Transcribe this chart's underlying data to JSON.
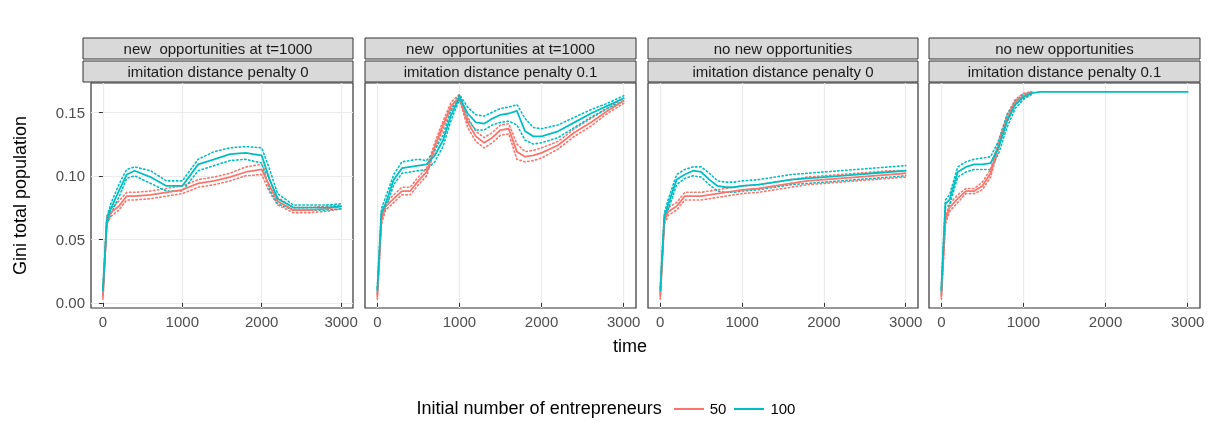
{
  "chart_data": [
    {
      "type": "line",
      "title": "new  opportunities at t=1000",
      "subtitle": "imitation distance penalty 0",
      "ylabel": "Gini total population",
      "legend_title": "Initial number of entrepreneurs",
      "legend": "bottom",
      "grid": true,
      "marker": "none",
      "line_style": "solid",
      "xlim": [
        -150,
        3150
      ],
      "ylim": [
        -0.004,
        0.173
      ],
      "xticks": [
        0,
        1000,
        2000,
        3000
      ],
      "yticks": [
        {
          "value": 0,
          "label": "0.00"
        },
        {
          "value": 0.05,
          "label": "0.05"
        },
        {
          "value": 0.1,
          "label": "0.10"
        },
        {
          "value": 0.15,
          "label": "0.15"
        }
      ],
      "x": [
        0,
        50,
        100,
        200,
        300,
        400,
        600,
        800,
        1000,
        1200,
        1400,
        1600,
        1800,
        2000,
        2100,
        2200,
        2400,
        2600,
        2800,
        3000
      ],
      "series": [
        {
          "color": "#f8766d",
          "line_style": "dotted",
          "values": [
            0.007,
            0.068,
            0.074,
            0.08,
            0.087,
            0.087,
            0.088,
            0.09,
            0.092,
            0.097,
            0.099,
            0.102,
            0.107,
            0.109,
            0.097,
            0.083,
            0.075,
            0.075,
            0.076,
            0.077
          ]
        },
        {
          "color": "#f8766d",
          "line_style": "dotted",
          "values": [
            0.003,
            0.062,
            0.068,
            0.073,
            0.081,
            0.081,
            0.082,
            0.084,
            0.086,
            0.091,
            0.093,
            0.096,
            0.1,
            0.101,
            0.087,
            0.077,
            0.071,
            0.071,
            0.072,
            0.074
          ]
        },
        {
          "color": "#00bfc4",
          "line_style": "dotted",
          "values": [
            0.012,
            0.068,
            0.078,
            0.093,
            0.105,
            0.107,
            0.104,
            0.096,
            0.096,
            0.113,
            0.119,
            0.122,
            0.123,
            0.122,
            0.105,
            0.086,
            0.077,
            0.077,
            0.077,
            0.078
          ]
        },
        {
          "color": "#00bfc4",
          "line_style": "dotted",
          "values": [
            0.008,
            0.062,
            0.07,
            0.083,
            0.098,
            0.1,
            0.094,
            0.088,
            0.088,
            0.104,
            0.108,
            0.112,
            0.113,
            0.11,
            0.089,
            0.078,
            0.073,
            0.073,
            0.073,
            0.074
          ]
        },
        {
          "name": "50",
          "color": "#f8766d",
          "values": [
            0.005,
            0.065,
            0.071,
            0.076,
            0.084,
            0.084,
            0.085,
            0.087,
            0.089,
            0.094,
            0.096,
            0.099,
            0.103,
            0.105,
            0.092,
            0.08,
            0.073,
            0.073,
            0.074,
            0.076
          ]
        },
        {
          "name": "100",
          "color": "#00bfc4",
          "values": [
            0.01,
            0.065,
            0.074,
            0.088,
            0.101,
            0.104,
            0.099,
            0.092,
            0.092,
            0.109,
            0.113,
            0.117,
            0.118,
            0.116,
            0.097,
            0.082,
            0.075,
            0.075,
            0.075,
            0.076
          ]
        }
      ]
    },
    {
      "type": "line",
      "title": "new  opportunities at t=1000",
      "subtitle": "imitation distance penalty 0.1",
      "xlabel": "time",
      "grid": true,
      "marker": "none",
      "line_style": "solid",
      "tick_labels": "x",
      "xlim": [
        -150,
        3150
      ],
      "ylim": [
        -0.004,
        0.173
      ],
      "xticks": [
        0,
        1000,
        2000,
        3000
      ],
      "x": [
        0,
        50,
        100,
        200,
        300,
        400,
        500,
        600,
        700,
        800,
        900,
        1000,
        1100,
        1200,
        1300,
        1400,
        1500,
        1600,
        1700,
        1800,
        1900,
        2000,
        2200,
        2400,
        2600,
        2800,
        3000
      ],
      "series": [
        {
          "color": "#f8766d",
          "line_style": "dotted",
          "values": [
            0.007,
            0.068,
            0.079,
            0.085,
            0.091,
            0.091,
            0.099,
            0.106,
            0.126,
            0.143,
            0.158,
            0.164,
            0.146,
            0.135,
            0.13,
            0.134,
            0.14,
            0.141,
            0.125,
            0.119,
            0.12,
            0.122,
            0.127,
            0.137,
            0.145,
            0.153,
            0.161
          ]
        },
        {
          "color": "#f8766d",
          "line_style": "dotted",
          "values": [
            0.003,
            0.062,
            0.073,
            0.079,
            0.085,
            0.085,
            0.093,
            0.1,
            0.12,
            0.137,
            0.152,
            0.16,
            0.138,
            0.127,
            0.122,
            0.126,
            0.132,
            0.133,
            0.113,
            0.111,
            0.112,
            0.114,
            0.121,
            0.131,
            0.139,
            0.149,
            0.157
          ]
        },
        {
          "color": "#00bfc4",
          "line_style": "dotted",
          "values": [
            0.012,
            0.074,
            0.083,
            0.101,
            0.111,
            0.112,
            0.113,
            0.112,
            0.12,
            0.132,
            0.152,
            0.164,
            0.154,
            0.148,
            0.147,
            0.15,
            0.153,
            0.154,
            0.156,
            0.145,
            0.138,
            0.137,
            0.14,
            0.146,
            0.152,
            0.157,
            0.163
          ]
        },
        {
          "color": "#00bfc4",
          "line_style": "dotted",
          "values": [
            0.008,
            0.068,
            0.074,
            0.093,
            0.102,
            0.103,
            0.104,
            0.105,
            0.111,
            0.123,
            0.144,
            0.16,
            0.144,
            0.136,
            0.136,
            0.14,
            0.142,
            0.143,
            0.14,
            0.128,
            0.125,
            0.126,
            0.13,
            0.138,
            0.146,
            0.153,
            0.159
          ]
        },
        {
          "name": "50",
          "color": "#f8766d",
          "values": [
            0.005,
            0.065,
            0.076,
            0.082,
            0.088,
            0.088,
            0.096,
            0.103,
            0.123,
            0.14,
            0.155,
            0.162,
            0.142,
            0.131,
            0.126,
            0.13,
            0.136,
            0.137,
            0.119,
            0.115,
            0.116,
            0.118,
            0.124,
            0.134,
            0.142,
            0.151,
            0.159
          ]
        },
        {
          "name": "100",
          "color": "#00bfc4",
          "values": [
            0.01,
            0.071,
            0.078,
            0.097,
            0.106,
            0.107,
            0.108,
            0.109,
            0.116,
            0.128,
            0.148,
            0.162,
            0.149,
            0.142,
            0.141,
            0.145,
            0.148,
            0.149,
            0.151,
            0.135,
            0.131,
            0.131,
            0.135,
            0.142,
            0.149,
            0.155,
            0.161
          ]
        }
      ]
    },
    {
      "type": "line",
      "title": "no new opportunities",
      "subtitle": "imitation distance penalty 0",
      "grid": true,
      "marker": "none",
      "line_style": "solid",
      "tick_labels": "x",
      "xlim": [
        -150,
        3150
      ],
      "ylim": [
        -0.004,
        0.173
      ],
      "xticks": [
        0,
        1000,
        2000,
        3000
      ],
      "x": [
        0,
        50,
        100,
        200,
        300,
        400,
        500,
        600,
        700,
        800,
        900,
        1000,
        1200,
        1400,
        1600,
        1800,
        2000,
        2200,
        2400,
        2600,
        2800,
        3000
      ],
      "series": [
        {
          "color": "#f8766d",
          "line_style": "dotted",
          "values": [
            0.007,
            0.068,
            0.075,
            0.079,
            0.087,
            0.087,
            0.087,
            0.088,
            0.089,
            0.09,
            0.091,
            0.092,
            0.093,
            0.095,
            0.097,
            0.099,
            0.1,
            0.101,
            0.102,
            0.103,
            0.104,
            0.104
          ]
        },
        {
          "color": "#f8766d",
          "line_style": "dotted",
          "values": [
            0.003,
            0.062,
            0.069,
            0.073,
            0.081,
            0.081,
            0.081,
            0.082,
            0.083,
            0.084,
            0.085,
            0.086,
            0.087,
            0.089,
            0.091,
            0.093,
            0.094,
            0.095,
            0.096,
            0.097,
            0.098,
            0.099
          ]
        },
        {
          "color": "#00bfc4",
          "line_style": "dotted",
          "values": [
            0.012,
            0.071,
            0.082,
            0.101,
            0.105,
            0.107,
            0.107,
            0.102,
            0.096,
            0.095,
            0.095,
            0.096,
            0.097,
            0.099,
            0.101,
            0.102,
            0.103,
            0.104,
            0.105,
            0.106,
            0.107,
            0.108
          ]
        },
        {
          "color": "#00bfc4",
          "line_style": "dotted",
          "values": [
            0.008,
            0.065,
            0.074,
            0.093,
            0.098,
            0.1,
            0.099,
            0.093,
            0.088,
            0.087,
            0.087,
            0.088,
            0.089,
            0.091,
            0.093,
            0.094,
            0.095,
            0.096,
            0.097,
            0.098,
            0.099,
            0.1
          ]
        },
        {
          "name": "50",
          "color": "#f8766d",
          "values": [
            0.005,
            0.065,
            0.072,
            0.076,
            0.084,
            0.084,
            0.084,
            0.085,
            0.086,
            0.087,
            0.088,
            0.089,
            0.09,
            0.092,
            0.094,
            0.096,
            0.097,
            0.098,
            0.099,
            0.1,
            0.101,
            0.102
          ]
        },
        {
          "name": "100",
          "color": "#00bfc4",
          "values": [
            0.01,
            0.068,
            0.078,
            0.097,
            0.101,
            0.104,
            0.103,
            0.097,
            0.092,
            0.091,
            0.091,
            0.092,
            0.093,
            0.095,
            0.097,
            0.098,
            0.099,
            0.1,
            0.101,
            0.102,
            0.103,
            0.104
          ]
        }
      ]
    },
    {
      "type": "line",
      "title": "no new opportunities",
      "subtitle": "imitation distance penalty 0.1",
      "grid": true,
      "marker": "none",
      "line_style": "solid",
      "tick_labels": "x",
      "xlim": [
        -150,
        3150
      ],
      "ylim": [
        -0.004,
        0.173
      ],
      "xticks": [
        0,
        1000,
        2000,
        3000
      ],
      "x": [
        0,
        50,
        100,
        200,
        300,
        400,
        500,
        600,
        700,
        800,
        900,
        1000,
        1100,
        1200,
        1600,
        2000,
        2400,
        2800,
        3000
      ],
      "series": [
        {
          "color": "#f8766d",
          "line_style": "dotted",
          "values": [
            0.007,
            0.068,
            0.078,
            0.085,
            0.09,
            0.09,
            0.095,
            0.105,
            0.128,
            0.148,
            0.16,
            0.165,
            0.166,
            null,
            null,
            null,
            null,
            null,
            null
          ]
        },
        {
          "color": "#f8766d",
          "line_style": "dotted",
          "values": [
            0.003,
            0.062,
            0.072,
            0.079,
            0.086,
            0.086,
            0.089,
            0.099,
            0.122,
            0.142,
            0.156,
            0.161,
            0.165,
            null,
            null,
            null,
            null,
            null,
            null
          ]
        },
        {
          "color": "#00bfc4",
          "line_style": "dotted",
          "values": [
            0.012,
            0.081,
            0.085,
            0.107,
            0.111,
            0.113,
            0.114,
            0.115,
            0.128,
            0.148,
            0.159,
            0.164,
            0.166,
            null,
            null,
            null,
            null,
            null,
            null
          ]
        },
        {
          "color": "#00bfc4",
          "line_style": "dotted",
          "values": [
            0.008,
            0.075,
            0.077,
            0.099,
            0.103,
            0.105,
            0.105,
            0.105,
            0.118,
            0.138,
            0.153,
            0.16,
            0.164,
            null,
            null,
            null,
            null,
            null,
            null
          ]
        },
        {
          "name": "50",
          "color": "#f8766d",
          "values": [
            0.005,
            0.065,
            0.075,
            0.082,
            0.088,
            0.088,
            0.092,
            0.102,
            0.125,
            0.145,
            0.158,
            0.163,
            0.166,
            null,
            null,
            null,
            null,
            null,
            null
          ]
        },
        {
          "name": "100",
          "color": "#00bfc4",
          "values": [
            0.01,
            0.078,
            0.081,
            0.103,
            0.107,
            0.109,
            0.109,
            0.11,
            0.123,
            0.143,
            0.156,
            0.162,
            0.165,
            0.166,
            0.166,
            0.166,
            0.166,
            0.166,
            0.166
          ]
        }
      ]
    }
  ]
}
